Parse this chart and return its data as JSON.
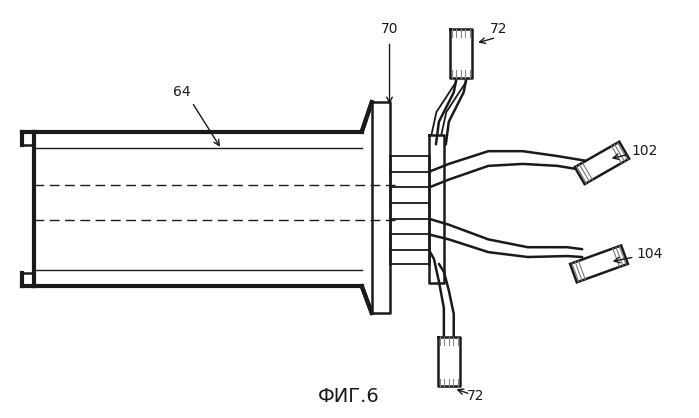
{
  "title": "ФИГ.6",
  "title_fontsize": 14,
  "background_color": "#ffffff",
  "line_color": "#1a1a1a",
  "label_color": "#1a1a1a"
}
